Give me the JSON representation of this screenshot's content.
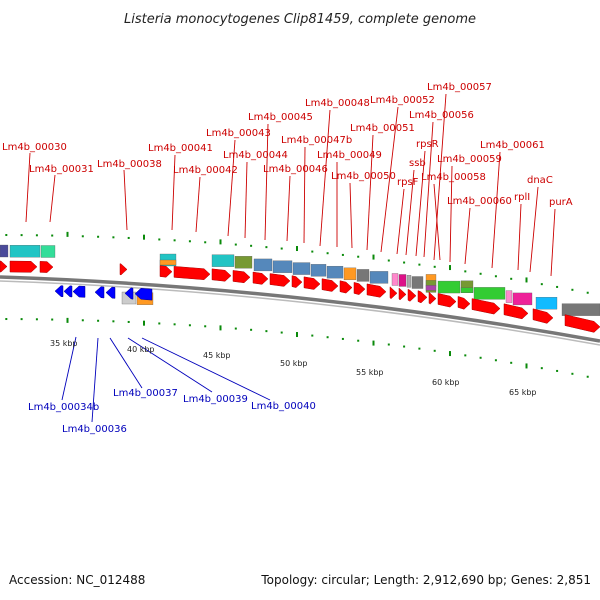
{
  "title": "Listeria monocytogenes Clip81459, complete genome",
  "footer": {
    "accession": "Accession: NC_012488",
    "summary": "Topology: circular; Length: 2,912,690 bp; Genes: 2,851"
  },
  "colors": {
    "forward_cds": "#ff0000",
    "reverse_cds": "#0000ff",
    "forward_label": "#cc0000",
    "reverse_label": "#0000bb",
    "backbone": "#888888",
    "tick": "#008800"
  },
  "kbp_labels": [
    "35 kbp",
    "40 kbp",
    "45 kbp",
    "50 kbp",
    "55 kbp",
    "60 kbp",
    "65 kbp"
  ],
  "forward_gene_labels": [
    "Lm4b_00030",
    "Lm4b_00031",
    "Lm4b_00038",
    "Lm4b_00041",
    "Lm4b_00042",
    "Lm4b_00043",
    "Lm4b_00044",
    "Lm4b_00045",
    "Lm4b_00046",
    "Lm4b_00047b",
    "Lm4b_00048",
    "Lm4b_00049",
    "Lm4b_00050",
    "Lm4b_00051",
    "Lm4b_00052",
    "rpsF",
    "ssb",
    "rpsR",
    "Lm4b_00056",
    "Lm4b_00057",
    "Lm4b_00058",
    "Lm4b_00059",
    "Lm4b_00060",
    "Lm4b_00061",
    "rplI",
    "dnaC",
    "purA"
  ],
  "reverse_gene_labels": [
    "Lm4b_00034b",
    "Lm4b_00036",
    "Lm4b_00037",
    "Lm4b_00039",
    "Lm4b_00040"
  ]
}
